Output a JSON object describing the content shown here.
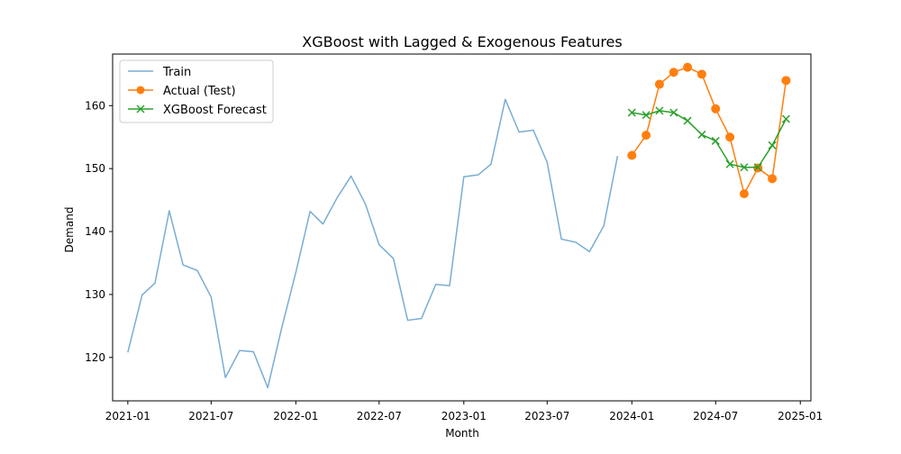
{
  "chart_data": {
    "type": "line",
    "title": "XGBoost with Lagged & Exogenous Features",
    "xlabel": "Month",
    "ylabel": "Demand",
    "x_range": [
      "2020-11-29",
      "2025-01-24"
    ],
    "ylim": [
      113.1,
      168.2
    ],
    "x_ticks": [
      "2021-01",
      "2021-07",
      "2022-01",
      "2022-07",
      "2023-01",
      "2023-07",
      "2024-01",
      "2024-07",
      "2025-01"
    ],
    "x_tick_dates": [
      "2021-01-01",
      "2021-07-01",
      "2022-01-01",
      "2022-07-01",
      "2023-01-01",
      "2023-07-01",
      "2024-01-01",
      "2024-07-01",
      "2025-01-01"
    ],
    "y_ticks": [
      120,
      130,
      140,
      150,
      160
    ],
    "grid": false,
    "legend_position": "top-left",
    "series": [
      {
        "name": "Train",
        "color": "#1f77b4",
        "opacity": 0.6,
        "marker": "none",
        "x": [
          "2021-01-01",
          "2021-02-01",
          "2021-03-01",
          "2021-04-01",
          "2021-05-01",
          "2021-06-01",
          "2021-07-01",
          "2021-08-01",
          "2021-09-01",
          "2021-10-01",
          "2021-11-01",
          "2021-12-01",
          "2022-01-01",
          "2022-02-01",
          "2022-03-01",
          "2022-04-01",
          "2022-05-01",
          "2022-06-01",
          "2022-07-01",
          "2022-08-01",
          "2022-09-01",
          "2022-10-01",
          "2022-11-01",
          "2022-12-01",
          "2023-01-01",
          "2023-02-01",
          "2023-03-01",
          "2023-04-01",
          "2023-05-01",
          "2023-06-01",
          "2023-07-01",
          "2023-08-01",
          "2023-09-01",
          "2023-10-01",
          "2023-11-01",
          "2023-12-01"
        ],
        "values": [
          120.8,
          129.9,
          131.8,
          143.3,
          134.7,
          133.8,
          129.6,
          116.8,
          121.1,
          120.9,
          115.2,
          124.6,
          133.5,
          143.2,
          141.2,
          145.4,
          148.8,
          144.4,
          137.9,
          135.7,
          125.9,
          126.2,
          131.6,
          131.4,
          148.7,
          149.0,
          150.7,
          161.0,
          155.8,
          156.1,
          151.0,
          138.8,
          138.3,
          136.8,
          140.9,
          152.0
        ]
      },
      {
        "name": "Actual (Test)",
        "color": "#ff7f0e",
        "opacity": 1,
        "marker": "circle",
        "x": [
          "2024-01-01",
          "2024-02-01",
          "2024-03-01",
          "2024-04-01",
          "2024-05-01",
          "2024-06-01",
          "2024-07-01",
          "2024-08-01",
          "2024-09-01",
          "2024-10-01",
          "2024-11-01",
          "2024-12-01"
        ],
        "values": [
          152.1,
          155.3,
          163.4,
          165.3,
          166.1,
          165.0,
          159.5,
          155.0,
          146.0,
          150.1,
          148.4,
          164.0
        ]
      },
      {
        "name": "XGBoost Forecast",
        "color": "#2ca02c",
        "opacity": 1,
        "marker": "x",
        "x": [
          "2024-01-01",
          "2024-02-01",
          "2024-03-01",
          "2024-04-01",
          "2024-05-01",
          "2024-06-01",
          "2024-07-01",
          "2024-08-01",
          "2024-09-01",
          "2024-10-01",
          "2024-11-01",
          "2024-12-01"
        ],
        "values": [
          158.9,
          158.5,
          159.2,
          158.9,
          157.6,
          155.4,
          154.4,
          150.7,
          150.2,
          150.2,
          153.7,
          157.9
        ]
      }
    ]
  }
}
